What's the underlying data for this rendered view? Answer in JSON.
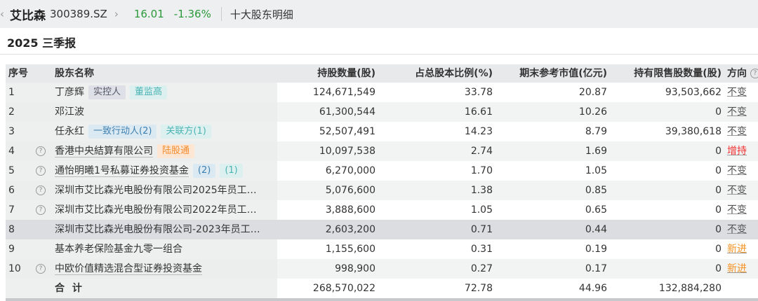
{
  "header": {
    "stock_name": "艾比森",
    "stock_code": "300389.SZ",
    "price": "16.01",
    "change": "-1.36%",
    "page_title": "十大股东明细",
    "colors": {
      "up": "#f23030",
      "down": "#2a9a3a"
    }
  },
  "report": {
    "period": "2025 三季报"
  },
  "table": {
    "columns": [
      "序号",
      "股东名称",
      "持股数量(股)",
      "占总股本比例(%)",
      "期末参考市值(亿元)",
      "持有限售股数量(股)",
      "方向"
    ],
    "rows": [
      {
        "seq": "1",
        "name": "丁彦辉",
        "help": false,
        "link": false,
        "tags": [
          {
            "text": "实控人",
            "style": "gray"
          },
          {
            "text": "董监高",
            "style": "teal"
          }
        ],
        "shares": "124,671,549",
        "ratio": "33.78",
        "value": "20.87",
        "restricted": "93,503,662",
        "direction": "不变",
        "dir_type": "same"
      },
      {
        "seq": "2",
        "name": "邓江波",
        "help": false,
        "link": false,
        "tags": [],
        "shares": "61,300,544",
        "ratio": "16.61",
        "value": "10.26",
        "restricted": "0",
        "direction": "不变",
        "dir_type": "same"
      },
      {
        "seq": "3",
        "name": "任永红",
        "help": false,
        "link": false,
        "tags": [
          {
            "text": "一致行动人(2)",
            "style": "blue"
          },
          {
            "text": "关联方(1)",
            "style": "teal"
          }
        ],
        "shares": "52,507,491",
        "ratio": "14.23",
        "value": "8.79",
        "restricted": "39,380,618",
        "direction": "不变",
        "dir_type": "same"
      },
      {
        "seq": "4",
        "name": "香港中央結算有限公司",
        "help": true,
        "link": true,
        "tags": [
          {
            "text": "陆股通",
            "style": "orange"
          }
        ],
        "shares": "10,097,538",
        "ratio": "2.74",
        "value": "1.69",
        "restricted": "0",
        "direction": "增持",
        "dir_type": "up"
      },
      {
        "seq": "5",
        "name": "通怡明曦1号私募证券投资基金",
        "help": true,
        "link": true,
        "tags": [
          {
            "text": "(2)",
            "style": "blue"
          },
          {
            "text": "(1)",
            "style": "teal"
          }
        ],
        "shares": "6,270,000",
        "ratio": "1.70",
        "value": "1.05",
        "restricted": "0",
        "direction": "不变",
        "dir_type": "same"
      },
      {
        "seq": "6",
        "name": "深圳市艾比森光电股份有限公司2025年员工…",
        "help": true,
        "link": false,
        "tags": [],
        "shares": "5,076,600",
        "ratio": "1.38",
        "value": "0.85",
        "restricted": "0",
        "direction": "不变",
        "dir_type": "same"
      },
      {
        "seq": "7",
        "name": "深圳市艾比森光电股份有限公司2022年员工…",
        "help": true,
        "link": false,
        "tags": [],
        "shares": "3,888,600",
        "ratio": "1.05",
        "value": "0.65",
        "restricted": "0",
        "direction": "不变",
        "dir_type": "same"
      },
      {
        "seq": "8",
        "name": "深圳市艾比森光电股份有限公司-2023年员工…",
        "help": false,
        "link": false,
        "tags": [],
        "shares": "2,603,200",
        "ratio": "0.71",
        "value": "0.44",
        "restricted": "0",
        "direction": "不变",
        "dir_type": "same"
      },
      {
        "seq": "9",
        "name": "基本养老保险基金九零一组合",
        "help": false,
        "link": false,
        "tags": [],
        "shares": "1,155,600",
        "ratio": "0.31",
        "value": "0.19",
        "restricted": "0",
        "direction": "新进",
        "dir_type": "new"
      },
      {
        "seq": "10",
        "name": "中欧价值精选混合型证券投资基金",
        "help": true,
        "link": true,
        "tags": [],
        "shares": "998,900",
        "ratio": "0.27",
        "value": "0.17",
        "restricted": "0",
        "direction": "新进",
        "dir_type": "new"
      }
    ],
    "total": {
      "label": "合 计",
      "shares": "268,570,022",
      "ratio": "72.78",
      "value": "44.96",
      "restricted": "132,884,280"
    },
    "hovered_row": "8"
  }
}
